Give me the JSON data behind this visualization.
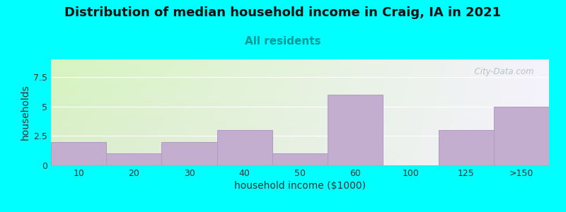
{
  "title": "Distribution of median household income in Craig, IA in 2021",
  "subtitle": "All residents",
  "xlabel": "household income ($1000)",
  "ylabel": "households",
  "background_color": "#00FFFF",
  "bar_color": "#c4aed0",
  "bar_edge_color": "#b09ac0",
  "categories": [
    "10",
    "20",
    "30",
    "40",
    "50",
    "60",
    "100",
    "125",
    ">150"
  ],
  "values": [
    2,
    1,
    2,
    3,
    1,
    6,
    0,
    3,
    5
  ],
  "ylim": [
    0,
    9
  ],
  "yticks": [
    0,
    2.5,
    5,
    7.5
  ],
  "watermark": "  City-Data.com",
  "title_fontsize": 13,
  "subtitle_fontsize": 11,
  "axis_label_fontsize": 10,
  "tick_fontsize": 9,
  "grad_top_left": "#d8eec8",
  "grad_top_right": "#eeeef8",
  "grad_bottom_left": "#e0e8e0",
  "grad_bottom_right": "#f8f4fc"
}
